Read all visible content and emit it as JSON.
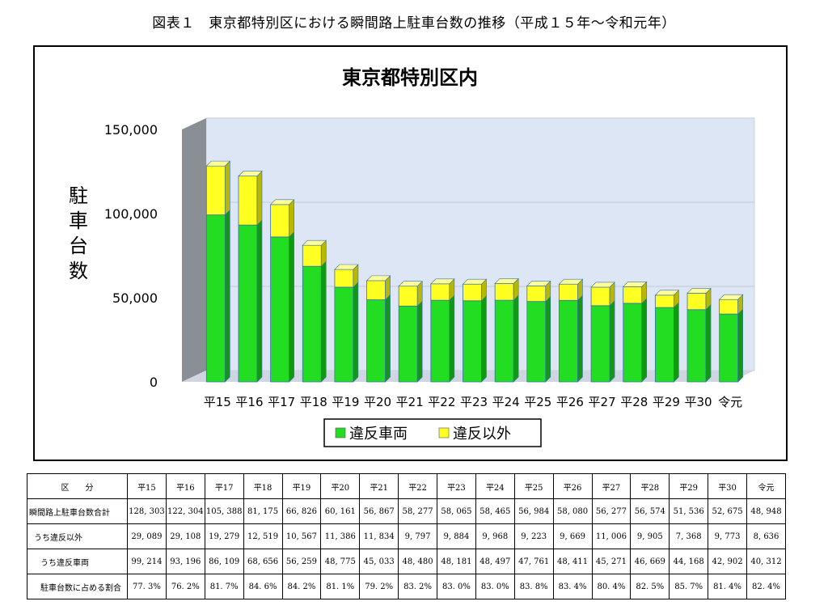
{
  "caption": "図表１　東京都特別区における瞬間路上駐車台数の推移（平成１５年〜令和元年）",
  "chart_data": {
    "type": "bar",
    "stacked": true,
    "title": "東京都特別区内",
    "ylabel": "駐車台数",
    "ylim": [
      0,
      150000
    ],
    "yticks": [
      "0",
      "50,000",
      "100,000",
      "150,000"
    ],
    "ytick_values": [
      0,
      50000,
      100000,
      150000
    ],
    "grid": true,
    "legend_position": "bottom",
    "categories": [
      "平15",
      "平16",
      "平17",
      "平18",
      "平19",
      "平20",
      "平21",
      "平22",
      "平23",
      "平24",
      "平25",
      "平26",
      "平27",
      "平28",
      "平29",
      "平30",
      "令元"
    ],
    "series": [
      {
        "name": "違反車両",
        "color": "#22dd22",
        "values": [
          99214,
          93196,
          86109,
          68656,
          56259,
          48775,
          45033,
          48480,
          48181,
          48497,
          47761,
          48411,
          45271,
          46669,
          44168,
          42902,
          40312
        ]
      },
      {
        "name": "違反以外",
        "color": "#ffff22",
        "values": [
          29089,
          29108,
          19279,
          12519,
          10567,
          11386,
          11834,
          9797,
          9884,
          9968,
          9223,
          9669,
          11006,
          9905,
          7368,
          9773,
          8636
        ]
      }
    ]
  },
  "table": {
    "header_label": "区　　分",
    "columns": [
      "平15",
      "平16",
      "平17",
      "平18",
      "平19",
      "平20",
      "平21",
      "平22",
      "平23",
      "平24",
      "平25",
      "平26",
      "平27",
      "平28",
      "平29",
      "平30",
      "令元"
    ],
    "rows": [
      {
        "label": "瞬間路上駐車台数合計",
        "indent": 0,
        "values": [
          "128, 303",
          "122, 304",
          "105, 388",
          "81, 175",
          "66, 826",
          "60, 161",
          "56, 867",
          "58, 277",
          "58, 065",
          "58, 465",
          "56, 984",
          "58, 080",
          "56, 277",
          "56, 574",
          "51, 536",
          "52, 675",
          "48, 948"
        ]
      },
      {
        "label": "うち違反以外",
        "indent": 1,
        "values": [
          "29, 089",
          "29, 108",
          "19, 279",
          "12, 519",
          "10, 567",
          "11, 386",
          "11, 834",
          "9, 797",
          "9, 884",
          "9, 968",
          "9, 223",
          "9, 669",
          "11, 006",
          "9, 905",
          "7, 368",
          "9, 773",
          "8, 636"
        ]
      },
      {
        "label": "うち違反車両",
        "indent": 2,
        "values": [
          "99, 214",
          "93, 196",
          "86, 109",
          "68, 656",
          "56, 259",
          "48, 775",
          "45, 033",
          "48, 480",
          "48, 181",
          "48, 497",
          "47, 761",
          "48, 411",
          "45, 271",
          "46, 669",
          "44, 168",
          "42, 902",
          "40, 312"
        ]
      },
      {
        "label": "駐車台数に占める割合",
        "indent": 2,
        "values": [
          "77. 3%",
          "76. 2%",
          "81. 7%",
          "84. 6%",
          "84. 2%",
          "81. 1%",
          "79. 2%",
          "83. 2%",
          "83. 0%",
          "83. 0%",
          "83. 8%",
          "83. 4%",
          "80. 4%",
          "82. 5%",
          "85. 7%",
          "81. 4%",
          "82. 4%"
        ]
      }
    ]
  }
}
